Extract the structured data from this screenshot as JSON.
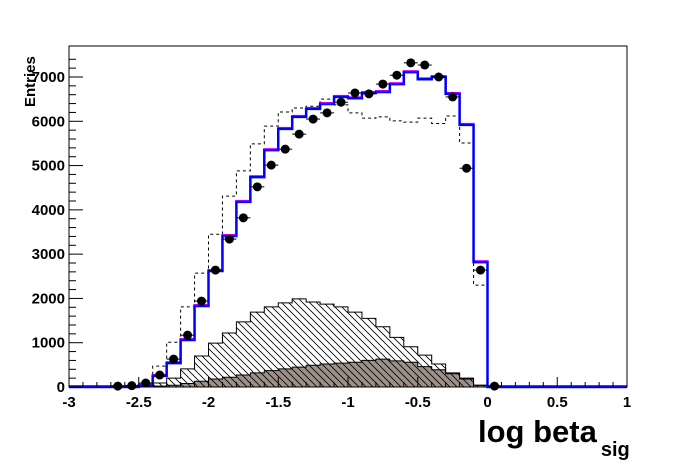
{
  "chart_data": {
    "type": "bar",
    "title": "",
    "xlabel": "log beta",
    "xlabel_sub": "sig",
    "ylabel": "Entries",
    "xlim": [
      -3,
      1
    ],
    "ylim": [
      0,
      7600
    ],
    "grid": false,
    "bins": {
      "low": -3,
      "high": 1,
      "n": 40
    },
    "x_ticks": [
      "-3",
      "-2.5",
      "-2",
      "-1.5",
      "-1",
      "-0.5",
      "0",
      "0.5",
      "1"
    ],
    "x_tick_values": [
      -3,
      -2.5,
      -2,
      -1.5,
      -1,
      -0.5,
      0,
      0.5,
      1
    ],
    "y_ticks": [
      "0",
      "1000",
      "2000",
      "3000",
      "4000",
      "5000",
      "6000",
      "7000"
    ],
    "y_tick_values": [
      0,
      1000,
      2000,
      3000,
      4000,
      5000,
      6000,
      7000
    ],
    "colors": {
      "total": "#0000ff",
      "total_under": "#ff00ff",
      "filled": "#9c9088",
      "dashed": "#000000",
      "hatched": "#000000"
    },
    "series": [
      {
        "style": "filled",
        "values": [
          0,
          0,
          0,
          0,
          0,
          0,
          20,
          40,
          80,
          130,
          180,
          220,
          270,
          320,
          370,
          410,
          450,
          490,
          520,
          540,
          560,
          600,
          630,
          590,
          560,
          460,
          390,
          300,
          180,
          40,
          0,
          0,
          0,
          0,
          0,
          0,
          0,
          0,
          0,
          0
        ]
      },
      {
        "style": "hatched",
        "values": [
          0,
          0,
          0,
          0,
          0,
          30,
          90,
          200,
          410,
          700,
          990,
          1220,
          1470,
          1690,
          1810,
          1900,
          1990,
          1920,
          1870,
          1810,
          1690,
          1550,
          1360,
          1120,
          910,
          720,
          520,
          320,
          200,
          40,
          0,
          0,
          0,
          0,
          0,
          0,
          0,
          0,
          0,
          0
        ]
      },
      {
        "style": "dashed",
        "values": [
          0,
          0,
          0,
          0,
          0,
          60,
          470,
          1010,
          1810,
          2570,
          3450,
          4310,
          4880,
          5490,
          5890,
          6210,
          6300,
          6340,
          6500,
          6370,
          6190,
          6070,
          6100,
          6010,
          5980,
          6070,
          5950,
          6120,
          5510,
          2300,
          0,
          0,
          0,
          0,
          0,
          0,
          0,
          0,
          0,
          0
        ]
      },
      {
        "style": "total",
        "values": [
          0,
          0,
          0,
          0,
          0,
          30,
          250,
          540,
          1060,
          1830,
          2620,
          3410,
          4180,
          4740,
          5350,
          5830,
          6100,
          6280,
          6390,
          6550,
          6520,
          6640,
          6660,
          6840,
          7110,
          6950,
          7000,
          6620,
          5920,
          2820,
          0,
          0,
          0,
          0,
          0,
          0,
          0,
          0,
          0,
          0
        ]
      }
    ],
    "points": {
      "x": [
        -2.65,
        -2.55,
        -2.45,
        -2.35,
        -2.25,
        -2.15,
        -2.05,
        -1.95,
        -1.85,
        -1.75,
        -1.65,
        -1.55,
        -1.45,
        -1.35,
        -1.25,
        -1.15,
        -1.05,
        -0.95,
        -0.85,
        -0.75,
        -0.65,
        -0.55,
        -0.45,
        -0.35,
        -0.25,
        -0.15,
        -0.05,
        0.05
      ],
      "y": [
        20,
        30,
        90,
        270,
        630,
        1170,
        1940,
        2640,
        3340,
        3820,
        4520,
        5010,
        5370,
        5710,
        6050,
        6190,
        6430,
        6640,
        6620,
        6840,
        7040,
        7320,
        7270,
        7000,
        6550,
        4940,
        2640,
        20
      ]
    }
  }
}
